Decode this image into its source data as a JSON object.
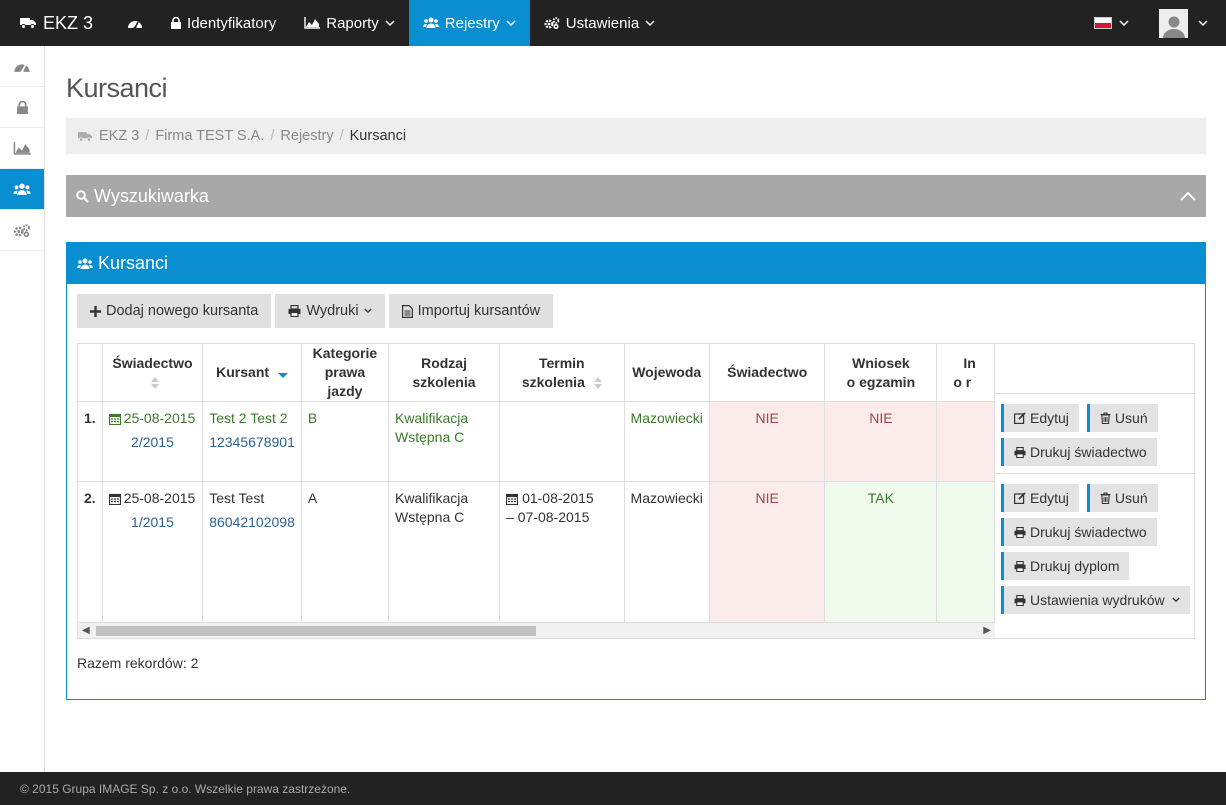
{
  "nav": {
    "brand": "EKZ 3",
    "items": [
      {
        "label": ""
      },
      {
        "label": "Identyfikatory"
      },
      {
        "label": "Raporty"
      },
      {
        "label": "Rejestry"
      },
      {
        "label": "Ustawienia"
      }
    ],
    "accent": "#0a8ed2"
  },
  "page": {
    "title": "Kursanci",
    "breadcrumb": [
      "EKZ 3",
      "Firma TEST S.A.",
      "Rejestry",
      "Kursanci"
    ]
  },
  "search_panel": {
    "title": "Wyszukiwarka"
  },
  "list_panel": {
    "title": "Kursanci",
    "buttons": {
      "add": "Dodaj nowego kursanta",
      "prints": "Wydruki",
      "import": "Importuj kursantów"
    },
    "columns": [
      "",
      "Świadectwo",
      "Kursant",
      "Kategorie prawa jazdy",
      "Rodzaj szkolenia",
      "Termin szkolenia",
      "Wojewoda",
      "Świadectwo",
      "Wniosek o egzamin",
      "In o r"
    ],
    "col_lines": {
      "kategorie_1": "Kategorie",
      "kategorie_2": "prawa jazdy",
      "wniosek_1": "Wniosek",
      "wniosek_2": "o egzamin",
      "cut_1": "In",
      "cut_2": "o r"
    },
    "rows": [
      {
        "no": "1.",
        "date": "25-08-2015",
        "cert_no": "2/2015",
        "name": "Test 2 Test 2",
        "pesel": "12345678901",
        "category": "B",
        "training_1": "Kwalifikacja",
        "training_2": "Wstępna C",
        "term_1": "",
        "term_2": "",
        "voivode": "Mazowiecki",
        "certificate": "NIE",
        "application": "NIE"
      },
      {
        "no": "2.",
        "date": "25-08-2015",
        "cert_no": "1/2015",
        "name": "Test Test",
        "pesel": "86042102098",
        "category": "A",
        "training_1": "Kwalifikacja",
        "training_2": "Wstępna C",
        "term_1": "01-08-2015",
        "term_2": "– 07-08-2015",
        "voivode": "Mazowiecki",
        "certificate": "NIE",
        "application": "TAK"
      }
    ],
    "actions": {
      "edit": "Edytuj",
      "delete": "Usuń",
      "print_cert": "Drukuj świadectwo",
      "print_diploma": "Drukuj dyplom",
      "print_settings": "Ustawienia wydruków"
    },
    "total": "Razem rekordów: 2"
  },
  "footer": {
    "text": "© 2015 Grupa IMAGE Sp. z o.o. Wszelkie prawa zastrzeżone."
  }
}
